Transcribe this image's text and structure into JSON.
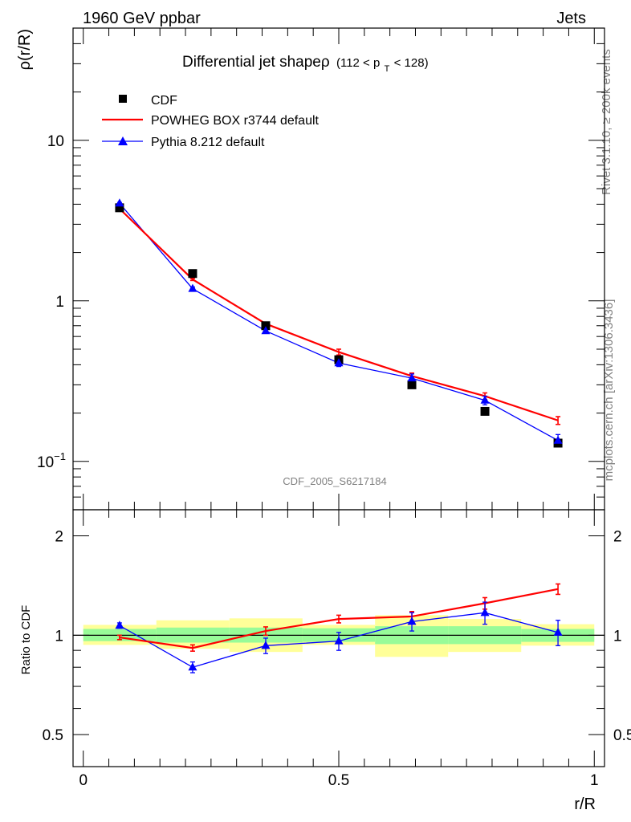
{
  "header": {
    "left": "1960 GeV ppbar",
    "right": "Jets"
  },
  "side": {
    "rivet": "Rivet 3.1.10, ≥ 200k events",
    "mcplots": "mcplots.cern.ch [arXiv:1306.3436]"
  },
  "plot": {
    "title_main": "Differential jet shapeρ",
    "title_range": "(112 < p",
    "title_sub": "T",
    "title_end": " < 128)",
    "watermark": "CDF_2005_S6217184",
    "ylabel": "ρ(r/R)",
    "ratio_ylabel": "Ratio to CDF",
    "xlabel": "r/R"
  },
  "legend": {
    "entries": [
      "CDF",
      "POWHEG BOX r3744 default",
      "Pythia 8.212 default"
    ]
  },
  "colors": {
    "data": "#000000",
    "powheg": "#ff0000",
    "pythia": "#0000ff",
    "band_inner": "#98fb98",
    "band_outer": "#ffff99"
  },
  "chart_data": [
    {
      "type": "scatter",
      "title": "Differential jet shapeρ (112 < p_T < 128)",
      "xlabel": "r/R",
      "ylabel": "ρ(r/R)",
      "xlim": [
        -0.02,
        1.02
      ],
      "ylim": [
        0.05,
        50
      ],
      "yscale": "log",
      "y_ticks": [
        "10^{-1}",
        "1",
        "10"
      ],
      "x": [
        0.071,
        0.214,
        0.357,
        0.5,
        0.643,
        0.786,
        0.929
      ],
      "series": [
        {
          "name": "CDF",
          "values": [
            3.8,
            1.48,
            0.7,
            0.43,
            0.3,
            0.205,
            0.13
          ],
          "marker": "square"
        },
        {
          "name": "POWHEG BOX r3744 default",
          "values": [
            3.75,
            1.36,
            0.72,
            0.48,
            0.34,
            0.255,
            0.18
          ],
          "errors": [
            0.03,
            0.02,
            0.01,
            0.02,
            0.015,
            0.012,
            0.01
          ]
        },
        {
          "name": "Pythia 8.212 default",
          "values": [
            4.05,
            1.19,
            0.65,
            0.41,
            0.33,
            0.24,
            0.135
          ],
          "errors": [
            0.05,
            0.03,
            0.02,
            0.02,
            0.02,
            0.015,
            0.012
          ],
          "marker": "triangle"
        }
      ]
    },
    {
      "type": "line",
      "ylabel": "Ratio to CDF",
      "xlabel": "r/R",
      "xlim": [
        -0.02,
        1.02
      ],
      "ylim": [
        0.4,
        2.4
      ],
      "yscale": "log",
      "y_ticks": [
        "0.5",
        "1",
        "2"
      ],
      "x_ticks": [
        "0",
        "0.5",
        "1"
      ],
      "x": [
        0.071,
        0.214,
        0.357,
        0.5,
        0.643,
        0.786,
        0.929
      ],
      "bins": [
        [
          0.0,
          0.143
        ],
        [
          0.143,
          0.286
        ],
        [
          0.286,
          0.429
        ],
        [
          0.429,
          0.571
        ],
        [
          0.571,
          0.714
        ],
        [
          0.714,
          0.857
        ],
        [
          0.857,
          1.0
        ]
      ],
      "band_inner": [
        [
          0.96,
          1.045
        ],
        [
          0.95,
          1.055
        ],
        [
          0.95,
          1.055
        ],
        [
          0.955,
          1.05
        ],
        [
          0.94,
          1.065
        ],
        [
          0.94,
          1.065
        ],
        [
          0.955,
          1.045
        ]
      ],
      "band_outer": [
        [
          0.935,
          1.075
        ],
        [
          0.91,
          1.11
        ],
        [
          0.89,
          1.125
        ],
        [
          0.935,
          1.075
        ],
        [
          0.86,
          1.15
        ],
        [
          0.89,
          1.12
        ],
        [
          0.93,
          1.08
        ]
      ],
      "series": [
        {
          "name": "POWHEG BOX r3744 default",
          "values": [
            0.985,
            0.915,
            1.03,
            1.12,
            1.14,
            1.25,
            1.38
          ],
          "errors": [
            0.015,
            0.02,
            0.03,
            0.03,
            0.04,
            0.05,
            0.05
          ]
        },
        {
          "name": "Pythia 8.212 default",
          "values": [
            1.07,
            0.8,
            0.93,
            0.96,
            1.1,
            1.17,
            1.02
          ],
          "errors": [
            0.02,
            0.03,
            0.05,
            0.06,
            0.07,
            0.09,
            0.09
          ]
        }
      ]
    }
  ]
}
